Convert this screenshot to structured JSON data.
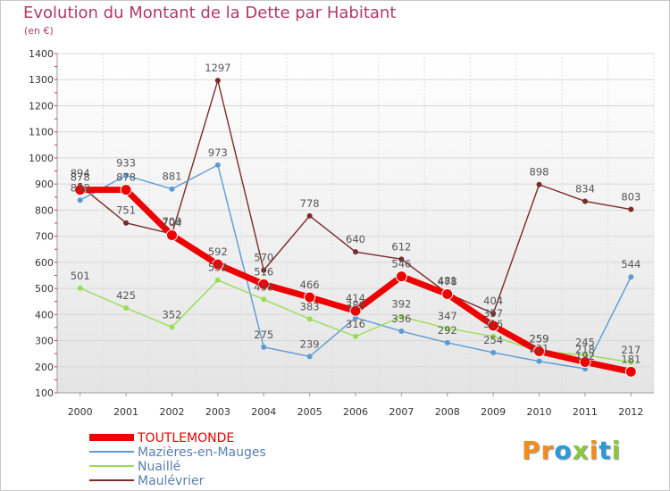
{
  "header": {
    "title": "Evolution du Montant de la Dette par Habitant",
    "subtitle": "(en €)"
  },
  "logo": {
    "text": "Proxiti",
    "letters": [
      {
        "ch": "P",
        "color": "#f28c1c"
      },
      {
        "ch": "r",
        "color": "#f28c1c"
      },
      {
        "ch": "o",
        "color": "#2a9ad8"
      },
      {
        "ch": "x",
        "color": "#8cc63f"
      },
      {
        "ch": "i",
        "color": "#f28c1c"
      },
      {
        "ch": "t",
        "color": "#2a9ad8"
      },
      {
        "ch": "i",
        "color": "#8cc63f"
      }
    ]
  },
  "chart_data": {
    "type": "line",
    "title": "Evolution du Montant de la Dette par Habitant",
    "ylabel": "(en €)",
    "xlabel": "",
    "ylim": [
      100,
      1400
    ],
    "yticks": [
      100,
      200,
      300,
      400,
      500,
      600,
      700,
      800,
      900,
      1000,
      1100,
      1200,
      1300,
      1400
    ],
    "x": [
      "2000",
      "2001",
      "2002",
      "2003",
      "2004",
      "2005",
      "2006",
      "2007",
      "2008",
      "2009",
      "2010",
      "2011",
      "2012"
    ],
    "grid": true,
    "legend_position": "bottom-left",
    "series": [
      {
        "name": "TOUTLEMONDE",
        "color": "#ee0000",
        "values": [
          878,
          878,
          704,
          592,
          516,
          466,
          414,
          546,
          478,
          357,
          259,
          218,
          181
        ]
      },
      {
        "name": "Mazières-en-Mauges",
        "color": "#5b9bd5",
        "values": [
          838,
          933,
          881,
          973,
          275,
          239,
          388,
          336,
          292,
          254,
          221,
          192,
          544
        ]
      },
      {
        "name": "Nuaillé",
        "color": "#99dd55",
        "values": [
          501,
          425,
          352,
          532,
          458,
          383,
          316,
          392,
          347,
          316,
          259,
          245,
          217
        ]
      },
      {
        "name": "Maulévrier",
        "color": "#7a2a2a",
        "values": [
          894,
          751,
          709,
          1297,
          570,
          778,
          640,
          612,
          481,
          404,
          898,
          834,
          803
        ]
      }
    ]
  }
}
